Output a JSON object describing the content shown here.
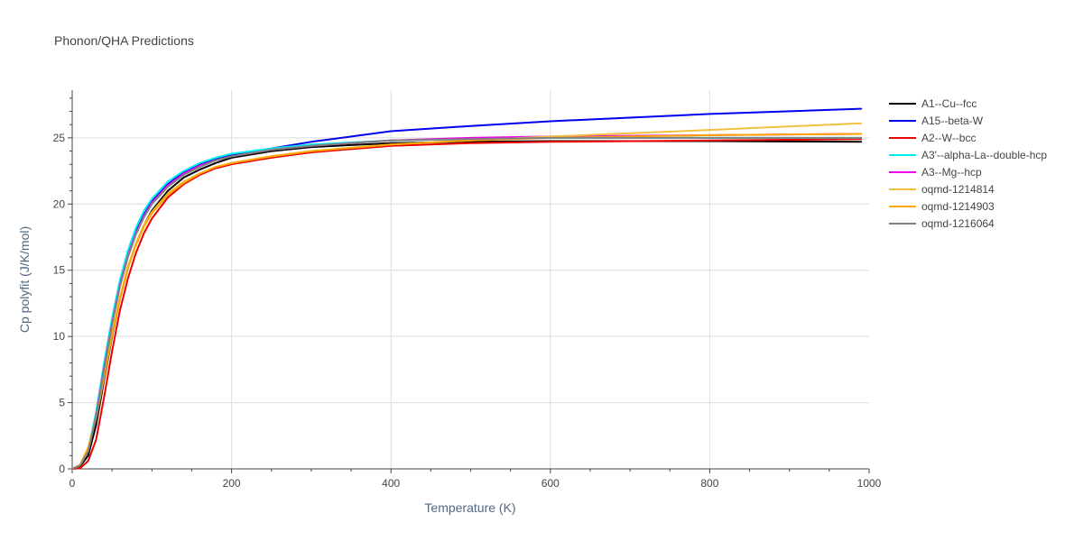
{
  "chart_data": {
    "type": "line",
    "title": "Phonon/QHA Predictions",
    "xlabel": "Temperature (K)",
    "ylabel": "Cp polyfit (J/K/mol)",
    "xlim": [
      0,
      1000
    ],
    "ylim": [
      0,
      28.6
    ],
    "x_ticks": [
      0,
      200,
      400,
      600,
      800,
      1000
    ],
    "y_ticks": [
      0,
      5,
      10,
      15,
      20,
      25
    ],
    "grid": true,
    "legend_position": "right",
    "series": [
      {
        "name": "A1--Cu--fcc",
        "color": "#000000",
        "x": [
          0,
          10,
          20,
          30,
          40,
          50,
          60,
          70,
          80,
          90,
          100,
          120,
          140,
          160,
          180,
          200,
          250,
          300,
          400,
          500,
          600,
          800,
          990
        ],
        "y": [
          0,
          0.2,
          1.0,
          3.3,
          6.7,
          10.0,
          12.9,
          15.2,
          17.0,
          18.4,
          19.5,
          21.0,
          22.0,
          22.6,
          23.1,
          23.5,
          24.0,
          24.3,
          24.6,
          24.7,
          24.75,
          24.75,
          24.7
        ]
      },
      {
        "name": "A15--beta-W",
        "color": "#0000ee",
        "x": [
          0,
          10,
          20,
          30,
          40,
          50,
          60,
          70,
          80,
          90,
          100,
          120,
          140,
          160,
          180,
          200,
          250,
          300,
          400,
          500,
          600,
          800,
          990
        ],
        "y": [
          0,
          0.25,
          1.4,
          4.1,
          7.7,
          11.1,
          14.0,
          16.2,
          17.9,
          19.2,
          20.2,
          21.5,
          22.4,
          23.0,
          23.4,
          23.7,
          24.2,
          24.7,
          25.5,
          25.9,
          26.25,
          26.8,
          27.2
        ]
      },
      {
        "name": "A2--W--bcc",
        "color": "#ee0000",
        "x": [
          0,
          10,
          20,
          30,
          40,
          50,
          60,
          70,
          80,
          90,
          100,
          120,
          140,
          160,
          180,
          200,
          250,
          300,
          400,
          500,
          600,
          800,
          990
        ],
        "y": [
          0,
          0.05,
          0.6,
          2.2,
          5.4,
          8.9,
          12.0,
          14.4,
          16.3,
          17.8,
          18.9,
          20.5,
          21.5,
          22.2,
          22.7,
          23.0,
          23.5,
          23.9,
          24.4,
          24.6,
          24.7,
          24.8,
          24.9
        ]
      },
      {
        "name": "A3'--alpha-La--double-hcp",
        "color": "#00eeee",
        "x": [
          0,
          10,
          20,
          30,
          40,
          50,
          60,
          70,
          80,
          90,
          100,
          120,
          140,
          160,
          180,
          200,
          250,
          300,
          400,
          500,
          600,
          800,
          990
        ],
        "y": [
          0,
          0.3,
          1.5,
          4.3,
          8.0,
          11.4,
          14.3,
          16.5,
          18.2,
          19.5,
          20.4,
          21.7,
          22.5,
          23.1,
          23.5,
          23.8,
          24.2,
          24.5,
          24.8,
          24.9,
          25.0,
          25.0,
          25.0
        ]
      },
      {
        "name": "A3--Mg--hcp",
        "color": "#ee00ee",
        "x": [
          0,
          10,
          20,
          30,
          40,
          50,
          60,
          70,
          80,
          90,
          100,
          120,
          140,
          160,
          180,
          200,
          250,
          300,
          400,
          500,
          600,
          800,
          990
        ],
        "y": [
          0,
          0.25,
          1.4,
          4.0,
          7.6,
          11.0,
          13.9,
          16.1,
          17.8,
          19.1,
          20.1,
          21.4,
          22.3,
          22.9,
          23.3,
          23.6,
          24.1,
          24.4,
          24.8,
          25.0,
          25.1,
          25.2,
          25.3
        ]
      },
      {
        "name": "oqmd-1214814",
        "color": "#f0c040",
        "x": [
          0,
          10,
          20,
          30,
          40,
          50,
          60,
          70,
          80,
          90,
          100,
          120,
          140,
          160,
          180,
          200,
          250,
          300,
          400,
          500,
          600,
          800,
          990
        ],
        "y": [
          0,
          0.3,
          1.6,
          3.9,
          7.0,
          10.2,
          13.0,
          15.3,
          17.0,
          18.4,
          19.4,
          20.8,
          21.7,
          22.3,
          22.8,
          23.1,
          23.6,
          24.0,
          24.5,
          24.8,
          25.1,
          25.6,
          26.1
        ]
      },
      {
        "name": "oqmd-1214903",
        "color": "#ffa500",
        "x": [
          0,
          10,
          20,
          30,
          40,
          50,
          60,
          70,
          80,
          90,
          100,
          120,
          140,
          160,
          180,
          200,
          250,
          300,
          400,
          500,
          600,
          800,
          990
        ],
        "y": [
          0,
          0.3,
          1.6,
          3.8,
          6.9,
          10.1,
          12.9,
          15.2,
          16.9,
          18.3,
          19.3,
          20.7,
          21.6,
          22.3,
          22.8,
          23.1,
          23.6,
          24.0,
          24.5,
          24.8,
          25.0,
          25.2,
          25.3
        ]
      },
      {
        "name": "oqmd-1216064",
        "color": "#808080",
        "x": [
          0,
          10,
          20,
          30,
          40,
          50,
          60,
          70,
          80,
          90,
          100,
          120,
          140,
          160,
          180,
          200,
          250,
          300,
          400,
          500,
          600,
          800,
          990
        ],
        "y": [
          0,
          0.25,
          1.3,
          3.9,
          7.5,
          10.9,
          13.8,
          16.0,
          17.7,
          19.0,
          20.0,
          21.3,
          22.2,
          22.8,
          23.3,
          23.6,
          24.1,
          24.4,
          24.8,
          24.9,
          25.0,
          25.0,
          25.0
        ]
      }
    ]
  }
}
